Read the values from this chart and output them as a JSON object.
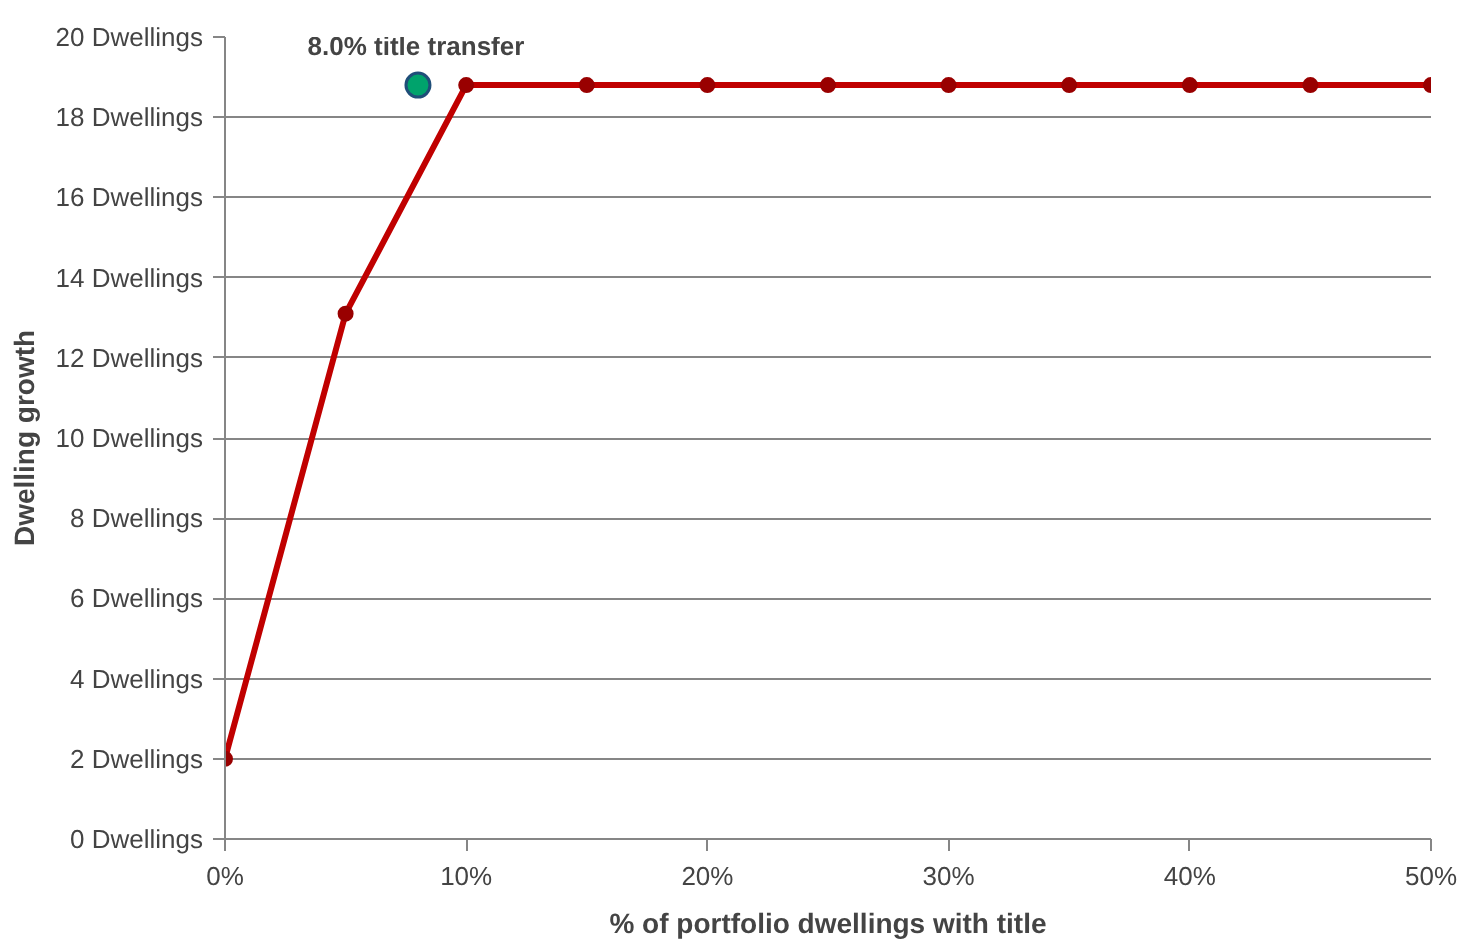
{
  "chart_data": {
    "type": "line",
    "xlabel": "% of portfolio dwellings with title",
    "ylabel": "Dwelling growth",
    "x": [
      0,
      5,
      10,
      15,
      20,
      25,
      30,
      35,
      40,
      45,
      50
    ],
    "series": [
      {
        "color": "#c00000",
        "values": [
          2,
          13.1,
          18.8,
          18.8,
          18.8,
          18.8,
          18.8,
          18.8,
          18.8,
          18.8,
          18.8
        ],
        "marker": "circle"
      },
      {
        "type": "scatter",
        "color": "#00a36c",
        "x": [
          8
        ],
        "values": [
          18.8
        ],
        "marker": "circle"
      }
    ],
    "annotations": [
      {
        "text": "8.0% title transfer",
        "x": 8,
        "y": 18.8
      }
    ],
    "xlim": [
      0,
      50
    ],
    "ylim": [
      0,
      20
    ],
    "xticks": [
      {
        "value": 0,
        "label": "0%"
      },
      {
        "value": 10,
        "label": "10%"
      },
      {
        "value": 20,
        "label": "20%"
      },
      {
        "value": 30,
        "label": "30%"
      },
      {
        "value": 40,
        "label": "40%"
      },
      {
        "value": 50,
        "label": "50%"
      }
    ],
    "yticks": [
      {
        "value": 0,
        "label": "0 Dwellings"
      },
      {
        "value": 2,
        "label": "2 Dwellings"
      },
      {
        "value": 4,
        "label": "4 Dwellings"
      },
      {
        "value": 6,
        "label": "6 Dwellings"
      },
      {
        "value": 8,
        "label": "8 Dwellings"
      },
      {
        "value": 10,
        "label": "10 Dwellings"
      },
      {
        "value": 12,
        "label": "12 Dwellings"
      },
      {
        "value": 14,
        "label": "14 Dwellings"
      },
      {
        "value": 16,
        "label": "16 Dwellings"
      },
      {
        "value": 18,
        "label": "18 Dwellings"
      },
      {
        "value": 20,
        "label": "20 Dwellings"
      }
    ],
    "grid": "y",
    "line_style": "solid"
  }
}
